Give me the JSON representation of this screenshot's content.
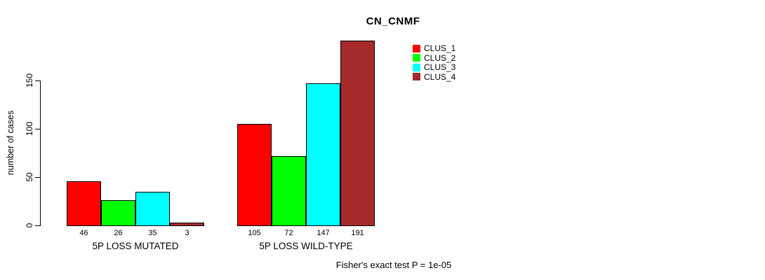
{
  "title": "CN_CNMF",
  "footer": "Fisher's exact test P = 1e-05",
  "chart_data": {
    "type": "bar",
    "title": "CN_CNMF",
    "xlabel": "",
    "ylabel": "number of cases",
    "groups": [
      "5P LOSS MUTATED",
      "5P LOSS WILD-TYPE"
    ],
    "series": [
      {
        "name": "CLUS_1",
        "color": "#ff0000",
        "values": [
          46,
          105
        ]
      },
      {
        "name": "CLUS_2",
        "color": "#00ff00",
        "values": [
          26,
          72
        ]
      },
      {
        "name": "CLUS_3",
        "color": "#00ffff",
        "values": [
          35,
          147
        ]
      },
      {
        "name": "CLUS_4",
        "color": "#a52a2a",
        "values": [
          3,
          191
        ]
      }
    ],
    "bar_value_labels": [
      [
        46,
        26,
        35,
        3
      ],
      [
        105,
        72,
        147,
        191
      ]
    ],
    "yticks": [
      0,
      50,
      100,
      150
    ],
    "ylim": [
      0,
      150
    ],
    "grid": false,
    "legend_position": "top-right",
    "annotation": "Fisher's exact test P = 1e-05"
  }
}
